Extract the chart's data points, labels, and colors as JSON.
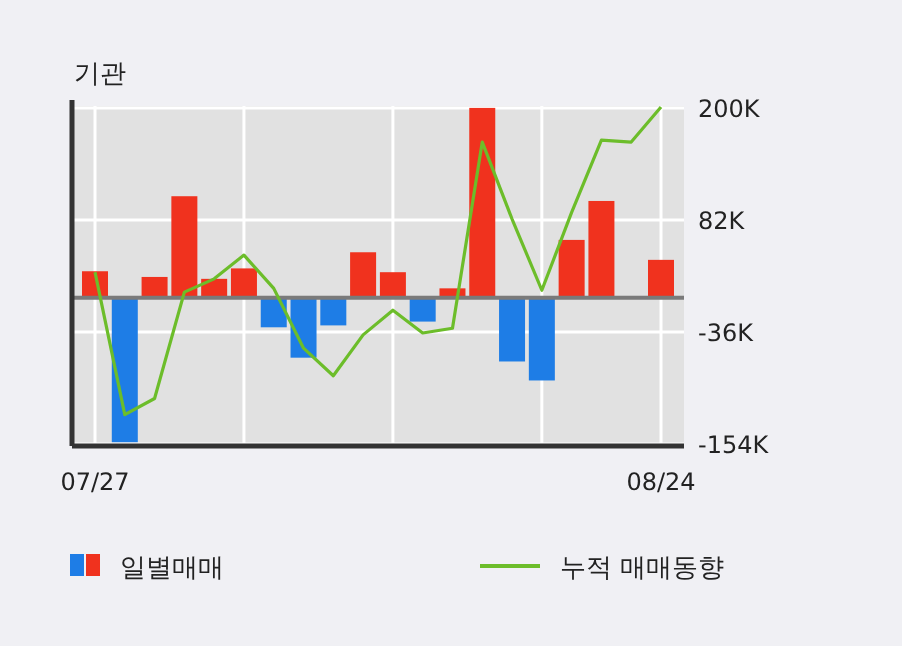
{
  "chart_data": {
    "type": "bar",
    "title": "기관",
    "categories": [
      "07/27",
      null,
      null,
      null,
      null,
      null,
      null,
      null,
      null,
      null,
      null,
      null,
      null,
      null,
      null,
      null,
      null,
      null,
      null,
      "08/24"
    ],
    "series": [
      {
        "name": "일별매매",
        "colors": [
          "#f0321e",
          "#1e7de6",
          "#f0321e",
          "#f0321e",
          "#f0321e",
          "#f0321e",
          "#1e7de6",
          "#1e7de6",
          "#1e7de6",
          "#f0321e",
          "#f0321e",
          "#1e7de6",
          "#f0321e",
          "#f0321e",
          "#1e7de6",
          "#1e7de6",
          "#f0321e",
          "#f0321e",
          "#f0321e",
          "#f0321e"
        ],
        "values": [
          28,
          -152,
          22,
          107,
          20,
          31,
          -31,
          -63,
          -29,
          48,
          27,
          -25,
          10,
          200,
          -67,
          -87,
          61,
          102,
          0,
          40
        ]
      },
      {
        "name": "누적 매매동향",
        "type": "line",
        "color": "#6cbd2a",
        "values": [
          27,
          -123,
          -106,
          6,
          20,
          45,
          10,
          -53,
          -82,
          -39,
          -13,
          -37,
          -32,
          164,
          83,
          8,
          90,
          166,
          164,
          201
        ]
      }
    ],
    "ylim": [
      -156,
      202
    ],
    "yticks": [
      {
        "value": 200,
        "label": "200K"
      },
      {
        "value": 82,
        "label": "82K"
      },
      {
        "value": -36,
        "label": "-36K"
      },
      {
        "value": -154,
        "label": "-154K"
      }
    ],
    "grid": true,
    "legend": "bottom"
  }
}
